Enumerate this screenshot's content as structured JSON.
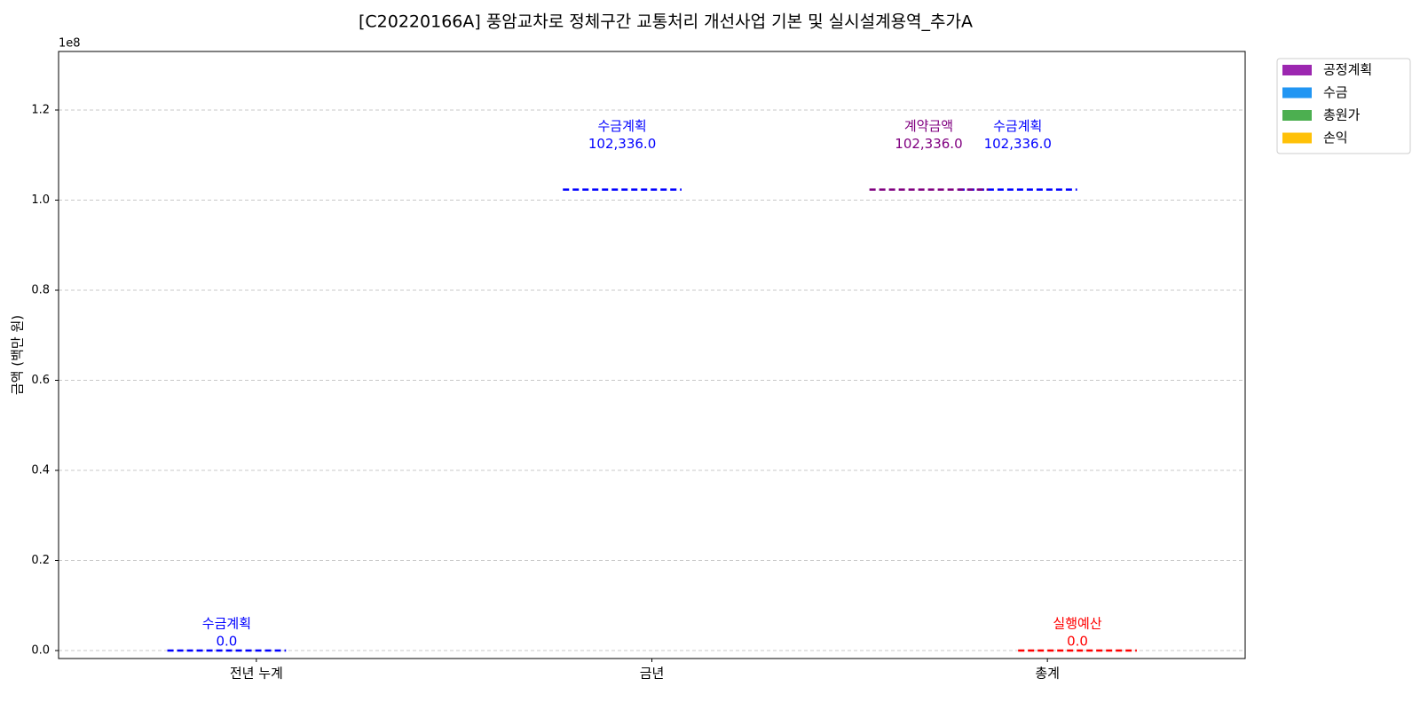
{
  "chart_data": {
    "type": "line",
    "title": "[C20220166A] 풍암교차로 정체구간 교통처리 개선사업 기본 및 실시설계용역_추가A",
    "y_label": "금액 (백만 원)",
    "y_offset_label": "1e8",
    "categories": [
      "전년 누계",
      "금년",
      "총계"
    ],
    "series": [
      {
        "name": "수금계획",
        "color": "#0000ff",
        "values": [
          0,
          102336000,
          102336000
        ],
        "value_labels": [
          "0.0",
          "102,336.0",
          "102,336.0"
        ]
      },
      {
        "name": "계약금액",
        "color": "#800080",
        "values": [
          null,
          null,
          102336000
        ],
        "value_labels": [
          null,
          null,
          "102,336.0"
        ]
      },
      {
        "name": "실행예산",
        "color": "#ff0000",
        "values": [
          null,
          null,
          0
        ],
        "value_labels": [
          null,
          null,
          "0.0"
        ]
      }
    ],
    "legend": [
      {
        "name": "공정계획",
        "color": "#9c27b0"
      },
      {
        "name": "수금",
        "color": "#2196f3"
      },
      {
        "name": "총원가",
        "color": "#4caf50"
      },
      {
        "name": "손익",
        "color": "#ffc107"
      }
    ],
    "ylim": [
      -1770000,
      133000000
    ],
    "yticks": [
      {
        "value": 0,
        "label": "0.0"
      },
      {
        "value": 20000000,
        "label": "0.2"
      },
      {
        "value": 40000000,
        "label": "0.4"
      },
      {
        "value": 60000000,
        "label": "0.6"
      },
      {
        "value": 80000000,
        "label": "0.8"
      },
      {
        "value": 100000000,
        "label": "1.0"
      },
      {
        "value": 120000000,
        "label": "1.2"
      }
    ],
    "grid": true
  }
}
